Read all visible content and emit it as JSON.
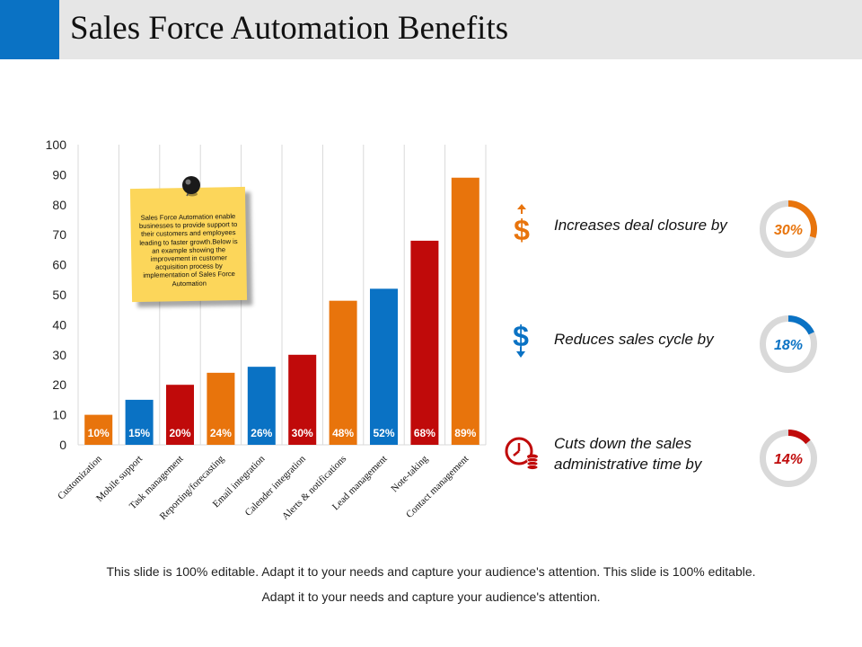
{
  "title": "Sales Force Automation Benefits",
  "note": "Sales Force Automation enable businesses to provide support to their customers and employees leading to faster growth.Below is an example showing the improvement in customer acquisition process by implementation of  Sales Force Automation",
  "chart_data": {
    "type": "bar",
    "categories": [
      "Customization",
      "Mobile support",
      "Task management",
      "Reporting/forecasting",
      "Email integration",
      "Calender integration",
      "Alerts & notifications",
      "Lead management",
      "Note-taking",
      "Contact management"
    ],
    "values": [
      10,
      15,
      20,
      24,
      26,
      30,
      48,
      52,
      68,
      89
    ],
    "labels": [
      "10%",
      "15%",
      "20%",
      "24%",
      "26%",
      "30%",
      "48%",
      "52%",
      "68%",
      "89%"
    ],
    "colors": [
      "#e8740c",
      "#0a72c4",
      "#c00a0a",
      "#e8740c",
      "#0a72c4",
      "#c00a0a",
      "#e8740c",
      "#0a72c4",
      "#c00a0a",
      "#e8740c"
    ],
    "ylim": [
      0,
      100
    ],
    "yticks": [
      "0",
      "10",
      "20",
      "30",
      "40",
      "50",
      "60",
      "70",
      "80",
      "90",
      "100"
    ],
    "grid": "vertical"
  },
  "benefits": [
    {
      "label": "Increases deal closure by",
      "value": 30,
      "value_label": "30%",
      "color": "#e8740c",
      "icon": "dollar-up-arrow-icon"
    },
    {
      "label": "Reduces sales cycle by",
      "value": 18,
      "value_label": "18%",
      "color": "#0a72c4",
      "icon": "dollar-down-arrow-icon"
    },
    {
      "label_line1": "Cuts down the sales",
      "label_line2": "administrative time by",
      "value": 14,
      "value_label": "14%",
      "color": "#c00a0a",
      "icon": "clock-coins-icon"
    }
  ],
  "footer": {
    "line1": "This slide is 100% editable. Adapt it to your needs and capture your audience's attention. This slide is 100% editable.",
    "line2": "Adapt it to your needs and capture your audience's attention."
  }
}
